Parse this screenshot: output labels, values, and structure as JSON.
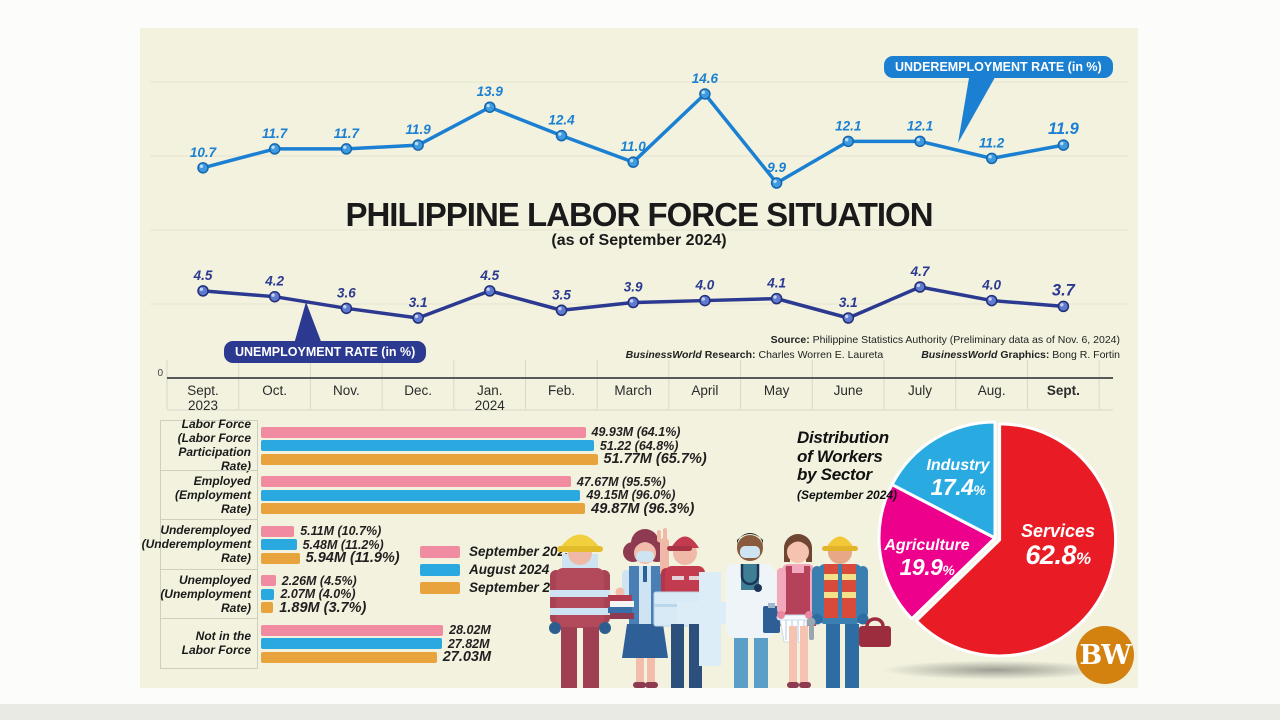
{
  "page": {
    "title": "PHILIPPINE LABOR FORCE SITUATION",
    "subtitle": "(as of September 2024)"
  },
  "credits": {
    "source_label": "Source:",
    "source_text": "Philippine Statistics Authority (Preliminary data as of Nov. 6, 2024)",
    "research_brand": "BusinessWorld",
    "research_label": "Research:",
    "research_name": "Charles Worren E. Laureta",
    "graphics_brand": "BusinessWorld",
    "graphics_label": "Graphics:",
    "graphics_name": "Bong R. Fortin"
  },
  "axis": {
    "zero": "0",
    "months": [
      {
        "lines": [
          "Sept.",
          "2023"
        ]
      },
      {
        "lines": [
          "Oct."
        ]
      },
      {
        "lines": [
          "Nov."
        ]
      },
      {
        "lines": [
          "Dec."
        ]
      },
      {
        "lines": [
          "Jan.",
          "2024"
        ]
      },
      {
        "lines": [
          "Feb."
        ]
      },
      {
        "lines": [
          "March"
        ]
      },
      {
        "lines": [
          "April"
        ]
      },
      {
        "lines": [
          "May"
        ]
      },
      {
        "lines": [
          "June"
        ]
      },
      {
        "lines": [
          "July"
        ]
      },
      {
        "lines": [
          "Aug."
        ]
      },
      {
        "lines": [
          "Sept."
        ],
        "current": true
      }
    ]
  },
  "chart_data": [
    {
      "type": "line",
      "name": "underemployment-rate",
      "series_label": "UNDEREMPLOYMENT RATE (in %)",
      "color": "#1b80d2",
      "categories": [
        "Sept. 2023",
        "Oct.",
        "Nov.",
        "Dec.",
        "Jan. 2024",
        "Feb.",
        "March",
        "April",
        "May",
        "June",
        "July",
        "Aug.",
        "Sept."
      ],
      "values": [
        10.7,
        11.7,
        11.7,
        11.9,
        13.9,
        12.4,
        11.0,
        14.6,
        9.9,
        12.1,
        12.1,
        11.2,
        11.9
      ]
    },
    {
      "type": "line",
      "name": "unemployment-rate",
      "series_label": "UNEMPLOYMENT RATE (in %)",
      "color": "#2b3990",
      "categories": [
        "Sept. 2023",
        "Oct.",
        "Nov.",
        "Dec.",
        "Jan. 2024",
        "Feb.",
        "March",
        "April",
        "May",
        "June",
        "July",
        "Aug.",
        "Sept."
      ],
      "values": [
        4.5,
        4.2,
        3.6,
        3.1,
        4.5,
        3.5,
        3.9,
        4.0,
        4.1,
        3.1,
        4.7,
        4.0,
        3.7
      ]
    },
    {
      "type": "bar",
      "name": "labor-force-indicators",
      "orientation": "horizontal",
      "unit": "millions of persons",
      "categories": [
        "Labor Force (Labor Force Participation Rate)",
        "Employed (Employment Rate)",
        "Underemployed (Underemployment Rate)",
        "Unemployed (Unemployment Rate)",
        "Not in the Labor Force"
      ],
      "category_lines": [
        [
          "Labor Force",
          "(Labor Force",
          "Participation Rate)"
        ],
        [
          "Employed",
          "(Employment Rate)"
        ],
        [
          "Underemployed",
          "(Underemployment",
          "Rate)"
        ],
        [
          "Unemployed",
          "(Unemployment Rate)"
        ],
        [
          "Not in the Labor Force"
        ]
      ],
      "series": [
        {
          "name": "September 2023",
          "color": "#f18ba2",
          "values": [
            49.93,
            47.67,
            5.11,
            2.26,
            28.02
          ],
          "labels": [
            "49.93M (64.1%)",
            "47.67M (95.5%)",
            "5.11M (10.7%)",
            "2.26M (4.5%)",
            "28.02M"
          ]
        },
        {
          "name": "August 2024",
          "color": "#2aa9e0",
          "values": [
            51.22,
            49.15,
            5.48,
            2.07,
            27.82
          ],
          "labels": [
            "51.22 (64.8%)",
            "49.15M (96.0%)",
            "5.48M (11.2%)",
            "2.07M (4.0%)",
            "27.82M"
          ]
        },
        {
          "name": "September 2024",
          "color": "#e9a33c",
          "values": [
            51.77,
            49.87,
            5.94,
            1.89,
            27.03
          ],
          "labels": [
            "51.77M (65.7%)",
            "49.87M (96.3%)",
            "5.94M (11.9%)",
            "1.89M (3.7%)",
            "27.03M"
          ],
          "emphasis": true
        }
      ]
    },
    {
      "type": "pie",
      "name": "distribution-of-workers-by-sector",
      "title": "Distribution of Workers by Sector",
      "title_lines": [
        "Distribution",
        "of Workers",
        "by Sector"
      ],
      "subtitle": "(September 2024)",
      "slices": [
        {
          "label": "Services",
          "value": 62.8,
          "value_label": "62.8",
          "unit": "%",
          "color": "#e91c25"
        },
        {
          "label": "Agriculture",
          "value": 19.9,
          "value_label": "19.9",
          "unit": "%",
          "color": "#ec008c"
        },
        {
          "label": "Industry",
          "value": 17.4,
          "value_label": "17.4",
          "unit": "%",
          "color": "#29abe2"
        }
      ]
    }
  ],
  "logo": {
    "text": "BW"
  },
  "colors": {
    "canvas_background": "#f2f2df",
    "axis_line": "#58595b",
    "underemployment_accent": "#1b80d2",
    "unemployment_accent": "#2b3990"
  }
}
